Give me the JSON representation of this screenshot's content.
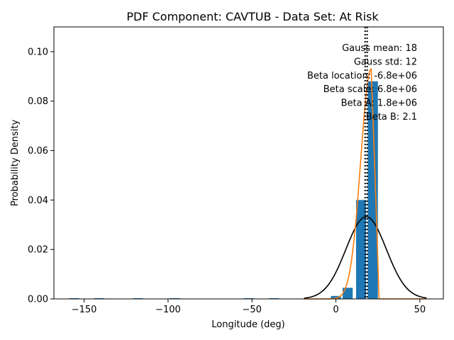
{
  "chart_data": {
    "type": "bar",
    "title": "PDF Component: CAVTUB - Data Set: At Risk",
    "xlabel": "Longitude (deg)",
    "ylabel": "Probability Density",
    "xlim": [
      -168,
      64
    ],
    "ylim": [
      0,
      0.11
    ],
    "xticks": [
      -150,
      -100,
      -50,
      0,
      50
    ],
    "xtick_labels": [
      "−150",
      "−100",
      "−50",
      "0",
      "50"
    ],
    "yticks": [
      0,
      0.02,
      0.04,
      0.06,
      0.08,
      0.1
    ],
    "ytick_labels": [
      "0.00",
      "0.02",
      "0.04",
      "0.06",
      "0.08",
      "0.10"
    ],
    "bar_color": "#1f77b4",
    "bar_width": 6,
    "bars": [
      {
        "x": -156,
        "y": 0.0002
      },
      {
        "x": -141,
        "y": 0.0002
      },
      {
        "x": -118,
        "y": 0.0002
      },
      {
        "x": -96,
        "y": 0.0002
      },
      {
        "x": -52,
        "y": 0.0002
      },
      {
        "x": -37,
        "y": 0.0002
      },
      {
        "x": 0,
        "y": 0.0012
      },
      {
        "x": 7,
        "y": 0.0045
      },
      {
        "x": 15,
        "y": 0.04
      },
      {
        "x": 22,
        "y": 0.088
      }
    ],
    "series": [
      {
        "name": "Gauss",
        "color": "#000000",
        "mean": 18,
        "std": 12,
        "x_range": [
          -19,
          54
        ]
      },
      {
        "name": "Beta",
        "color": "#ff7f0e",
        "peak_x": 21,
        "peak_y": 0.093,
        "x_range": [
          -19,
          54
        ]
      }
    ],
    "vlines": [
      {
        "x": 17.4,
        "style": "dotted",
        "color": "#000000"
      },
      {
        "x": 18.6,
        "style": "dotted",
        "color": "#000000"
      }
    ],
    "annotations": [
      "Gauss mean: 18",
      "Gauss std: 12",
      "Beta location: -6.8e+06",
      "Beta scale: 6.8e+06",
      "Beta A: 1.8e+06",
      "Beta B: 2.1"
    ],
    "grid": false
  }
}
